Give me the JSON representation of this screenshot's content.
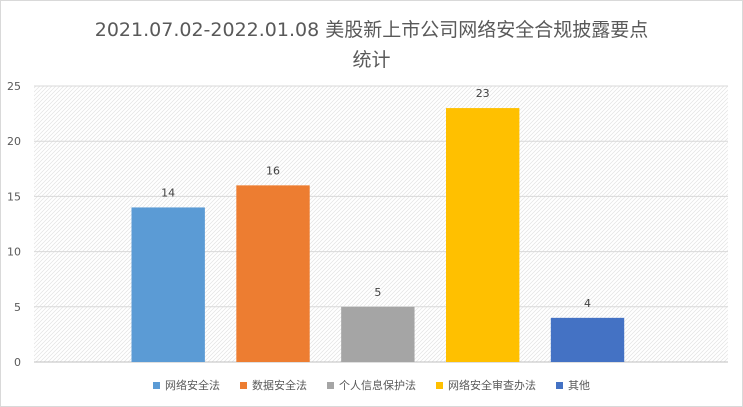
{
  "chart_data": {
    "type": "bar",
    "title_lines": [
      "2021.07.02-2022.01.08 美股新上市公司网络安全合规披露要点",
      "统计"
    ],
    "categories": [
      "网络安全法",
      "数据安全法",
      "个人信息保护法",
      "网络安全审查办法",
      "其他"
    ],
    "values": [
      14,
      16,
      5,
      23,
      4
    ],
    "colors": [
      "#5b9bd5",
      "#ed7d31",
      "#a5a5a5",
      "#ffc000",
      "#4472c4"
    ],
    "ylim": [
      0,
      25
    ],
    "yticks": [
      "0",
      "5",
      "10",
      "15",
      "20",
      "25"
    ],
    "grid": true,
    "legend_position": "bottom",
    "xlabel": "",
    "ylabel": ""
  }
}
